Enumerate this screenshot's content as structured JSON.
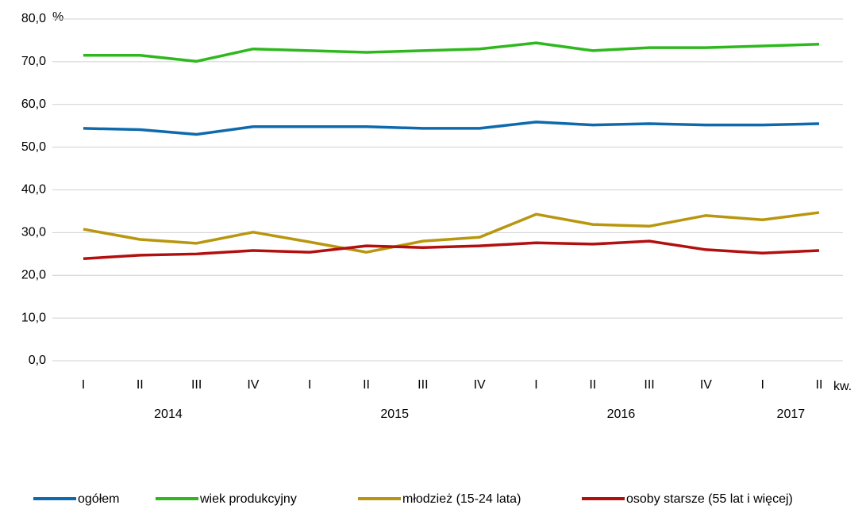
{
  "chart_data": {
    "type": "line",
    "y_unit_label": "%",
    "x_unit_label": "kw.",
    "categories": [
      "I",
      "II",
      "III",
      "IV",
      "I",
      "II",
      "III",
      "IV",
      "I",
      "II",
      "III",
      "IV",
      "I",
      "II"
    ],
    "year_labels": [
      "2014",
      "2015",
      "2016",
      "2017"
    ],
    "series": [
      {
        "name": "ogółem",
        "color": "#0d6aad",
        "values": [
          54.4,
          54.1,
          53.0,
          54.8,
          54.8,
          54.8,
          54.4,
          54.4,
          55.9,
          55.2,
          55.5,
          55.2,
          55.2,
          55.5
        ]
      },
      {
        "name": "wiek produkcyjny",
        "color": "#2eb81e",
        "values": [
          71.5,
          71.5,
          70.1,
          73.0,
          72.6,
          72.2,
          72.6,
          73.0,
          74.4,
          72.6,
          73.3,
          73.3,
          73.7,
          74.1
        ]
      },
      {
        "name": "młodzież  (15-24 lata)",
        "color": "#b8960e",
        "values": [
          30.8,
          28.4,
          27.5,
          30.1,
          27.8,
          25.4,
          28.0,
          28.9,
          34.3,
          31.9,
          31.5,
          34.0,
          33.0,
          34.7
        ]
      },
      {
        "name": "osoby starsze (55 lat i więcej)",
        "color": "#b20f0f",
        "values": [
          23.9,
          24.7,
          25.0,
          25.8,
          25.4,
          26.9,
          26.5,
          26.9,
          27.6,
          27.3,
          28.0,
          26.0,
          25.2,
          25.8
        ]
      }
    ],
    "ylim": [
      0,
      80
    ],
    "yticks": [
      {
        "value": 0,
        "label": "0,0"
      },
      {
        "value": 10,
        "label": "10,0"
      },
      {
        "value": 20,
        "label": "20,0"
      },
      {
        "value": 30,
        "label": "30,0"
      },
      {
        "value": 40,
        "label": "40,0"
      },
      {
        "value": 50,
        "label": "50,0"
      },
      {
        "value": 60,
        "label": "60,0"
      },
      {
        "value": 70,
        "label": "70,0"
      },
      {
        "value": 80,
        "label": "80,0"
      }
    ],
    "grid": true,
    "legend": "bottom"
  }
}
